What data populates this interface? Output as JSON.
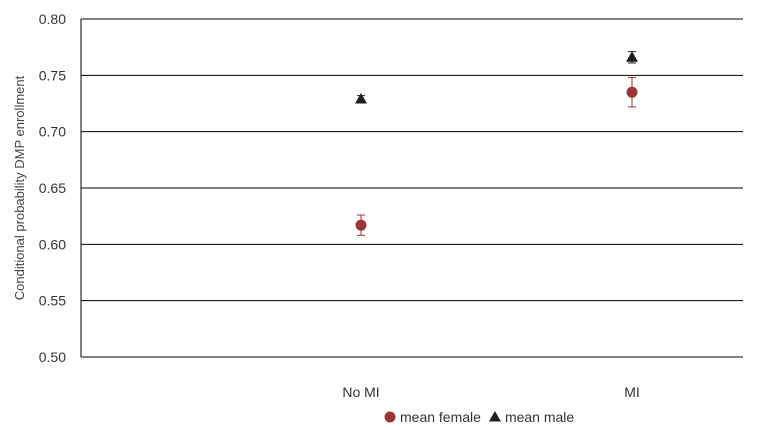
{
  "chart_data": {
    "type": "scatter",
    "title": "",
    "xlabel": "",
    "ylabel": "Conditional probability DMP enrollment",
    "categories": [
      "No MI",
      "MI"
    ],
    "ylim": [
      0.5,
      0.8
    ],
    "yticks": [
      "0.50",
      "0.55",
      "0.60",
      "0.65",
      "0.70",
      "0.75",
      "0.80"
    ],
    "grid": true,
    "legend_position": "bottom",
    "series": [
      {
        "name": "mean female",
        "marker": "circle",
        "color": "#9B3535",
        "values": [
          0.617,
          0.735
        ],
        "error": [
          0.009,
          0.013
        ]
      },
      {
        "name": "mean male",
        "marker": "triangle",
        "color": "#1f1f1f",
        "values": [
          0.729,
          0.766
        ],
        "error": [
          0.003,
          0.005
        ]
      }
    ]
  }
}
